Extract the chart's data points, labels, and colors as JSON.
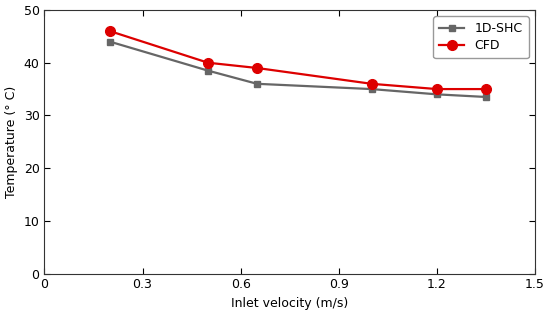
{
  "shc_x": [
    0.2,
    0.5,
    0.65,
    1.0,
    1.2,
    1.35
  ],
  "shc_y": [
    44.0,
    38.5,
    36.0,
    35.0,
    34.0,
    33.5
  ],
  "cfd_x": [
    0.2,
    0.5,
    0.65,
    1.0,
    1.2,
    1.35
  ],
  "cfd_y": [
    46.0,
    40.0,
    39.0,
    36.0,
    35.0,
    35.0
  ],
  "shc_color": "#666666",
  "cfd_color": "#dd0000",
  "shc_label": "1D-SHC",
  "cfd_label": "CFD",
  "xlabel": "Inlet velocity (m/s)",
  "ylabel": "Temperature (° C)",
  "xlim": [
    0.0,
    1.5
  ],
  "ylim": [
    0,
    50
  ],
  "xticks": [
    0.0,
    0.3,
    0.6,
    0.9,
    1.2,
    1.5
  ],
  "xtick_labels": [
    "0",
    "0.3",
    "0.6",
    "0.9",
    "1.2",
    "1.5"
  ],
  "yticks": [
    0,
    10,
    20,
    30,
    40,
    50
  ],
  "linewidth": 1.6,
  "markersize_shc": 5,
  "markersize_cfd": 7,
  "font_family": "DejaVu Sans",
  "font_size": 9
}
